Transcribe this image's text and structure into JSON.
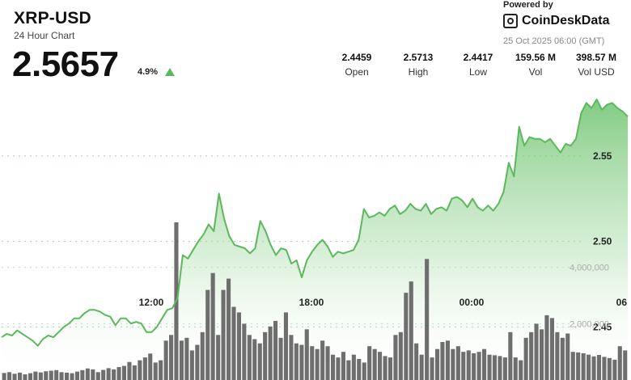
{
  "header": {
    "title": "XRP-USD",
    "subtitle": "24 Hour Chart",
    "price": "2.5657",
    "change": "4.9%",
    "change_direction": "up-triangle-icon"
  },
  "branding": {
    "powered_by": "Powered by",
    "logo_text": "CoinDeskData",
    "timestamp": "25 Oct 2025 06:00 (GMT)"
  },
  "stats": [
    {
      "value": "2.4459",
      "label": "Open"
    },
    {
      "value": "2.5713",
      "label": "High"
    },
    {
      "value": "2.4417",
      "label": "Low"
    },
    {
      "value": "159.56 M",
      "label": "Vol"
    },
    {
      "value": "398.57 M",
      "label": "Vol USD"
    }
  ],
  "colors": {
    "line": "#5cb85c",
    "area_top": "#8fd18f",
    "volume": "#666666",
    "grid": "#b3dcb3"
  },
  "chart_data": {
    "type": "line",
    "x_ticks": [
      "12:00",
      "18:00",
      "00:00",
      "06"
    ],
    "y_ticks": [
      2.45,
      2.5,
      2.55
    ],
    "y_tick_labels": [
      "2.45",
      "2.50",
      "2.55"
    ],
    "ylim": [
      2.419,
      2.592
    ],
    "volume_ticks": [
      2000000,
      4000000
    ],
    "volume_tick_labels": [
      "2,000,000",
      "4,000,000"
    ],
    "volume_max": 5600000,
    "price_series": [
      2.444,
      2.446,
      2.445,
      2.448,
      2.446,
      2.444,
      2.442,
      2.439,
      2.443,
      2.445,
      2.444,
      2.447,
      2.45,
      2.452,
      2.455,
      2.455,
      2.458,
      2.46,
      2.46,
      2.459,
      2.457,
      2.456,
      2.451,
      2.455,
      2.455,
      2.452,
      2.453,
      2.452,
      2.447,
      2.447,
      2.45,
      2.455,
      2.46,
      2.461,
      2.467,
      2.492,
      2.49,
      2.495,
      2.5,
      2.504,
      2.51,
      2.506,
      2.528,
      2.513,
      2.503,
      2.498,
      2.497,
      2.496,
      2.493,
      2.496,
      2.512,
      2.506,
      2.498,
      2.492,
      2.496,
      2.495,
      2.487,
      2.489,
      2.479,
      2.489,
      2.494,
      2.498,
      2.501,
      2.497,
      2.491,
      2.494,
      2.493,
      2.494,
      2.495,
      2.501,
      2.519,
      2.514,
      2.515,
      2.517,
      2.515,
      2.519,
      2.521,
      2.516,
      2.518,
      2.522,
      2.519,
      2.518,
      2.522,
      2.516,
      2.519,
      2.52,
      2.518,
      2.525,
      2.526,
      2.524,
      2.52,
      2.525,
      2.52,
      2.518,
      2.521,
      2.518,
      2.522,
      2.529,
      2.546,
      2.538,
      2.567,
      2.556,
      2.561,
      2.56,
      2.56,
      2.558,
      2.56,
      2.556,
      2.552,
      2.557,
      2.556,
      2.56,
      2.575,
      2.581,
      2.578,
      2.583,
      2.577,
      2.58,
      2.581,
      2.578,
      2.576,
      2.573
    ],
    "volume_series": [
      250000,
      280000,
      220000,
      260000,
      200000,
      240000,
      300000,
      270000,
      310000,
      330000,
      350000,
      280000,
      260000,
      240000,
      300000,
      350000,
      410000,
      380000,
      280000,
      360000,
      420000,
      380000,
      460000,
      500000,
      640000,
      520000,
      700000,
      800000,
      940000,
      620000,
      700000,
      1400000,
      1600000,
      5600000,
      1400000,
      1500000,
      1050000,
      1250000,
      1700000,
      3200000,
      3800000,
      1600000,
      3200000,
      3600000,
      2600000,
      2400000,
      2000000,
      1600000,
      1450000,
      1300000,
      1700000,
      1900000,
      2100000,
      1500000,
      2400000,
      1600000,
      1300000,
      1250000,
      1800000,
      1200000,
      1100000,
      1400000,
      1200000,
      900000,
      800000,
      1000000,
      700000,
      900000,
      750000,
      620000,
      1200000,
      1100000,
      1000000,
      850000,
      800000,
      1600000,
      1700000,
      3100000,
      3500000,
      1300000,
      900000,
      4300000,
      800000,
      1100000,
      1350000,
      1400000,
      1100000,
      1200000,
      1000000,
      1050000,
      950000,
      1000000,
      1100000,
      900000,
      880000,
      850000,
      800000,
      1700000,
      800000,
      700000,
      1500000,
      1700000,
      2000000,
      1800000,
      2300000,
      2200000,
      1700000,
      1500000,
      1650000,
      1000000,
      980000,
      950000,
      900000,
      840000,
      890000,
      820000,
      780000,
      720000,
      1200000,
      1050000
    ]
  }
}
